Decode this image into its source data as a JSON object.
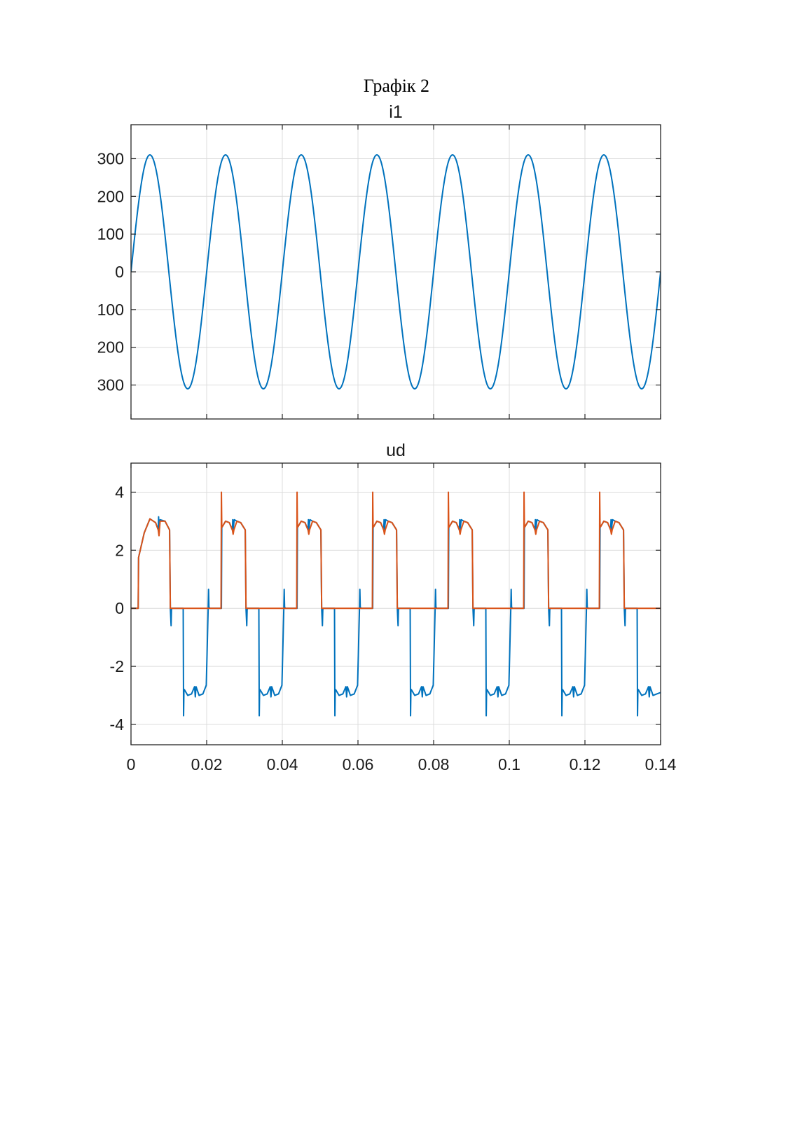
{
  "page": {
    "caption": "Графік 2"
  },
  "chart_data": [
    {
      "type": "line",
      "title": "i1",
      "xlabel": "",
      "ylabel": "",
      "xlim": [
        0,
        0.14
      ],
      "ylim": [
        -390,
        390
      ],
      "grid": true,
      "x_ticks": [
        0,
        0.02,
        0.04,
        0.06,
        0.08,
        0.1,
        0.12,
        0.14
      ],
      "x_tick_labels": [],
      "y_ticks": [
        300,
        200,
        100,
        0,
        -100,
        -200,
        -300
      ],
      "y_tick_labels": [
        "300",
        "200",
        "100",
        "0",
        "100",
        "200",
        "300"
      ],
      "series": [
        {
          "color": "#0072BD",
          "x": [
            0,
            0.0025,
            0.005,
            0.0075,
            0.01,
            0.0125,
            0.015,
            0.0175,
            0.02,
            0.0225,
            0.025,
            0.0275,
            0.03,
            0.0325,
            0.035,
            0.0375,
            0.04,
            0.0425,
            0.045,
            0.0475,
            0.05,
            0.0525,
            0.055,
            0.0575,
            0.06,
            0.0625,
            0.065,
            0.0675,
            0.07,
            0.0725,
            0.075,
            0.0775,
            0.08,
            0.0825,
            0.085,
            0.0875,
            0.09,
            0.0925,
            0.095,
            0.0975,
            0.1,
            0.1025,
            0.105,
            0.1075,
            0.11,
            0.1125,
            0.115,
            0.1175,
            0.12,
            0.1225,
            0.125,
            0.1275,
            0.13,
            0.1325,
            0.135,
            0.1375,
            0.14
          ],
          "y": [
            0,
            219.2,
            310,
            219.2,
            0,
            -219.2,
            -310,
            -219.2,
            0,
            219.2,
            310,
            219.2,
            0,
            -219.2,
            -310,
            -219.2,
            0,
            219.2,
            310,
            219.2,
            0,
            -219.2,
            -310,
            -219.2,
            0,
            219.2,
            310,
            219.2,
            0,
            -219.2,
            -310,
            -219.2,
            0,
            219.2,
            310,
            219.2,
            0,
            -219.2,
            -310,
            -219.2,
            0,
            219.2,
            310,
            219.2,
            0,
            -219.2,
            -310,
            -219.2,
            0,
            219.2,
            310,
            219.2,
            0,
            -219.2,
            -310,
            -219.2,
            0
          ]
        }
      ]
    },
    {
      "type": "line",
      "title": "ud",
      "xlabel": "",
      "ylabel": "",
      "xlim": [
        0,
        0.14
      ],
      "ylim": [
        -4.7,
        5.0
      ],
      "grid": true,
      "x_ticks": [
        0,
        0.02,
        0.04,
        0.06,
        0.08,
        0.1,
        0.12,
        0.14
      ],
      "x_tick_labels": [
        "0",
        "0.02",
        "0.04",
        "0.06",
        "0.08",
        "0.1",
        "0.12",
        "0.14"
      ],
      "y_ticks": [
        4,
        2,
        0,
        -2,
        -4
      ],
      "y_tick_labels": [
        "4",
        "2",
        "0",
        "-2",
        "-4"
      ],
      "series": [
        {
          "color": "#0072BD",
          "x": [
            0,
            0.0019,
            0.002,
            0.0035,
            0.005,
            0.0065,
            0.0072,
            0.0073,
            0.0074,
            0.0076,
            0.0077,
            0.009,
            0.0102,
            0.0104,
            0.0106,
            0.0107,
            0.0108,
            0.012,
            0.0138,
            0.0139,
            0.014,
            0.0141,
            0.015,
            0.016,
            0.0168,
            0.017,
            0.0172,
            0.018,
            0.019,
            0.0199,
            0.0204,
            0.0205,
            0.0206,
            0.0208,
            0.022,
            0.0239,
            0.024,
            0.0241,
            0.025,
            0.026,
            0.0268,
            0.0269,
            0.027,
            0.0272,
            0.0273,
            0.028,
            0.029,
            0.0302,
            0.0304,
            0.0306,
            0.0307,
            0.0308,
            0.032,
            0.0338,
            0.0339,
            0.034,
            0.0341,
            0.035,
            0.036,
            0.0368,
            0.037,
            0.0372,
            0.038,
            0.039,
            0.0399,
            0.0404,
            0.0405,
            0.0406,
            0.0408,
            0.042,
            0.0439,
            0.044,
            0.0441,
            0.045,
            0.046,
            0.0468,
            0.0469,
            0.047,
            0.0472,
            0.0473,
            0.048,
            0.049,
            0.0502,
            0.0504,
            0.0506,
            0.0507,
            0.0508,
            0.052,
            0.0538,
            0.0539,
            0.054,
            0.0541,
            0.055,
            0.056,
            0.0568,
            0.057,
            0.0572,
            0.058,
            0.059,
            0.0599,
            0.0604,
            0.0605,
            0.0606,
            0.0608,
            0.062,
            0.0639,
            0.064,
            0.0641,
            0.065,
            0.066,
            0.0668,
            0.0669,
            0.067,
            0.0672,
            0.0673,
            0.068,
            0.069,
            0.0702,
            0.0704,
            0.0706,
            0.0707,
            0.0708,
            0.072,
            0.0738,
            0.0739,
            0.074,
            0.0741,
            0.075,
            0.076,
            0.0768,
            0.077,
            0.0772,
            0.078,
            0.079,
            0.0799,
            0.0804,
            0.0805,
            0.0806,
            0.0808,
            0.082,
            0.0839,
            0.084,
            0.0841,
            0.085,
            0.086,
            0.0868,
            0.0869,
            0.087,
            0.0872,
            0.0873,
            0.088,
            0.089,
            0.0902,
            0.0904,
            0.0906,
            0.0907,
            0.0908,
            0.092,
            0.0938,
            0.0939,
            0.094,
            0.0941,
            0.095,
            0.096,
            0.0968,
            0.097,
            0.0972,
            0.098,
            0.099,
            0.0999,
            0.1004,
            0.1005,
            0.1006,
            0.1008,
            0.102,
            0.1039,
            0.104,
            0.1041,
            0.105,
            0.106,
            0.1068,
            0.1069,
            0.107,
            0.1072,
            0.1073,
            0.108,
            0.109,
            0.1102,
            0.1104,
            0.1106,
            0.1107,
            0.1108,
            0.112,
            0.1138,
            0.1139,
            0.114,
            0.1141,
            0.115,
            0.116,
            0.1168,
            0.117,
            0.1172,
            0.118,
            0.119,
            0.1199,
            0.1204,
            0.1205,
            0.1206,
            0.1208,
            0.122,
            0.1239,
            0.124,
            0.1241,
            0.125,
            0.126,
            0.1268,
            0.1269,
            0.127,
            0.1272,
            0.1273,
            0.128,
            0.129,
            0.1302,
            0.1304,
            0.1306,
            0.1307,
            0.1308,
            0.132,
            0.1338,
            0.1339,
            0.134,
            0.1341,
            0.135,
            0.136,
            0.1368,
            0.137,
            0.1372,
            0.138,
            0.139,
            0.14
          ],
          "y": [
            0,
            0,
            1.75,
            2.6,
            3.08,
            2.95,
            2.7,
            3.15,
            2.55,
            2.95,
            3.05,
            3.0,
            2.7,
            0,
            -0.6,
            -0.05,
            0,
            0,
            0,
            -3.7,
            -2.8,
            -2.8,
            -3.0,
            -2.95,
            -2.7,
            -3.05,
            -2.7,
            -3.0,
            -2.95,
            -2.65,
            0,
            0.65,
            0.05,
            0,
            0,
            0,
            2.8,
            2.8,
            3.0,
            2.95,
            2.7,
            3.05,
            2.7,
            2.95,
            3.05,
            3.0,
            2.95,
            2.7,
            0,
            -0.6,
            -0.05,
            0,
            0,
            0,
            -3.7,
            -2.8,
            -2.8,
            -3.0,
            -2.95,
            -2.7,
            -3.05,
            -2.7,
            -3.0,
            -2.95,
            -2.65,
            0,
            0.65,
            0.05,
            0,
            0,
            0,
            2.8,
            2.8,
            3.0,
            2.95,
            2.7,
            3.05,
            2.7,
            2.95,
            3.05,
            3.0,
            2.95,
            2.7,
            0,
            -0.6,
            -0.05,
            0,
            0,
            0,
            -3.7,
            -2.8,
            -2.8,
            -3.0,
            -2.95,
            -2.7,
            -3.05,
            -2.7,
            -3.0,
            -2.95,
            -2.65,
            0,
            0.65,
            0.05,
            0,
            0,
            0,
            2.8,
            2.8,
            3.0,
            2.95,
            2.7,
            3.05,
            2.7,
            2.95,
            3.05,
            3.0,
            2.95,
            2.7,
            0,
            -0.6,
            -0.05,
            0,
            0,
            0,
            -3.7,
            -2.8,
            -2.8,
            -3.0,
            -2.95,
            -2.7,
            -3.05,
            -2.7,
            -3.0,
            -2.95,
            -2.65,
            0,
            0.65,
            0.05,
            0,
            0,
            0,
            2.8,
            2.8,
            3.0,
            2.95,
            2.7,
            3.05,
            2.7,
            2.95,
            3.05,
            3.0,
            2.95,
            2.7,
            0,
            -0.6,
            -0.05,
            0,
            0,
            0,
            -3.7,
            -2.8,
            -2.8,
            -3.0,
            -2.95,
            -2.7,
            -3.05,
            -2.7,
            -3.0,
            -2.95,
            -2.65,
            0,
            0.65,
            0.05,
            0,
            0,
            0,
            2.8,
            2.8,
            3.0,
            2.95,
            2.7,
            3.05,
            2.7,
            2.95,
            3.05,
            3.0,
            2.95,
            2.7,
            0,
            -0.6,
            -0.05,
            0,
            0,
            0,
            -3.7,
            -2.8,
            -2.8,
            -3.0,
            -2.95,
            -2.7,
            -3.05,
            -2.7,
            -3.0,
            -2.95,
            -2.65,
            0,
            0.65,
            0.05,
            0,
            0,
            0,
            2.8,
            2.8,
            3.0,
            2.95,
            2.7,
            3.05,
            2.7,
            2.95,
            3.05,
            3.0,
            2.95,
            2.7,
            0,
            -0.6,
            -0.05,
            0,
            0,
            0,
            -3.7,
            -2.8,
            -2.8,
            -3.0,
            -2.95,
            -2.7,
            -3.05,
            -2.7,
            -3.0,
            -2.95,
            -2.9
          ]
        },
        {
          "color": "#D95319",
          "x": [
            0,
            0.0019,
            0.002,
            0.0035,
            0.005,
            0.0065,
            0.0072,
            0.0074,
            0.0077,
            0.009,
            0.0102,
            0.0104,
            0.0238,
            0.0239,
            0.024,
            0.0241,
            0.025,
            0.026,
            0.0268,
            0.027,
            0.0272,
            0.028,
            0.029,
            0.0302,
            0.0304,
            0.0438,
            0.0439,
            0.044,
            0.0441,
            0.045,
            0.046,
            0.0468,
            0.047,
            0.0472,
            0.048,
            0.049,
            0.0502,
            0.0504,
            0.0638,
            0.0639,
            0.064,
            0.0641,
            0.065,
            0.066,
            0.0668,
            0.067,
            0.0672,
            0.068,
            0.069,
            0.0702,
            0.0704,
            0.0838,
            0.0839,
            0.084,
            0.0841,
            0.085,
            0.086,
            0.0868,
            0.087,
            0.0872,
            0.088,
            0.089,
            0.0902,
            0.0904,
            0.1038,
            0.1039,
            0.104,
            0.1041,
            0.105,
            0.106,
            0.1068,
            0.107,
            0.1072,
            0.108,
            0.109,
            0.1102,
            0.1104,
            0.1238,
            0.1239,
            0.124,
            0.1241,
            0.125,
            0.126,
            0.1268,
            0.127,
            0.1272,
            0.128,
            0.129,
            0.1302,
            0.1304,
            0.14
          ],
          "y": [
            0,
            0,
            1.75,
            2.6,
            3.08,
            2.95,
            2.7,
            2.5,
            3.0,
            3.0,
            2.7,
            0,
            0,
            4.0,
            2.8,
            2.8,
            3.0,
            2.95,
            2.7,
            2.55,
            2.7,
            3.0,
            2.95,
            2.7,
            0,
            0,
            4.0,
            2.8,
            2.8,
            3.0,
            2.95,
            2.7,
            2.55,
            2.7,
            3.0,
            2.95,
            2.7,
            0,
            0,
            4.0,
            2.8,
            2.8,
            3.0,
            2.95,
            2.7,
            2.55,
            2.7,
            3.0,
            2.95,
            2.7,
            0,
            0,
            4.0,
            2.8,
            2.8,
            3.0,
            2.95,
            2.7,
            2.55,
            2.7,
            3.0,
            2.95,
            2.7,
            0,
            0,
            4.0,
            2.8,
            2.8,
            3.0,
            2.95,
            2.7,
            2.55,
            2.7,
            3.0,
            2.95,
            2.7,
            0,
            0,
            4.0,
            2.8,
            2.8,
            3.0,
            2.95,
            2.7,
            2.55,
            2.7,
            3.0,
            2.95,
            2.7,
            0,
            0
          ]
        }
      ]
    }
  ]
}
